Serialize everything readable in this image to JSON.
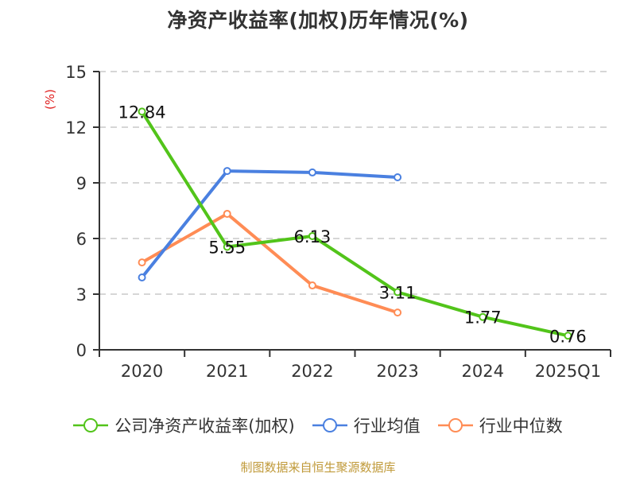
{
  "chart_data": {
    "type": "line",
    "title": "净资产收益率(加权)历年情况(%)",
    "ylabel": "(%)",
    "xlabel": "",
    "categories": [
      "2020",
      "2021",
      "2022",
      "2023",
      "2024",
      "2025Q1"
    ],
    "ylim": [
      0,
      15
    ],
    "yticks": [
      0,
      3,
      6,
      9,
      12,
      15
    ],
    "grid": true,
    "legend_position": "bottom",
    "series": [
      {
        "name": "公司净资产收益率(加权)",
        "color": "#52c41a",
        "values": [
          12.84,
          5.55,
          6.13,
          3.11,
          1.77,
          0.76
        ],
        "labels": [
          "12.84",
          "5.55",
          "6.13",
          "3.11",
          "1.77",
          "0.76"
        ]
      },
      {
        "name": "行业均值",
        "color": "#4a80e0",
        "values": [
          3.9,
          9.64,
          9.56,
          9.3,
          null,
          null
        ]
      },
      {
        "name": "行业中位数",
        "color": "#ff8c55",
        "values": [
          4.71,
          7.33,
          3.47,
          2.01,
          null,
          null
        ]
      }
    ]
  },
  "source": "制图数据来自恒生聚源数据库"
}
